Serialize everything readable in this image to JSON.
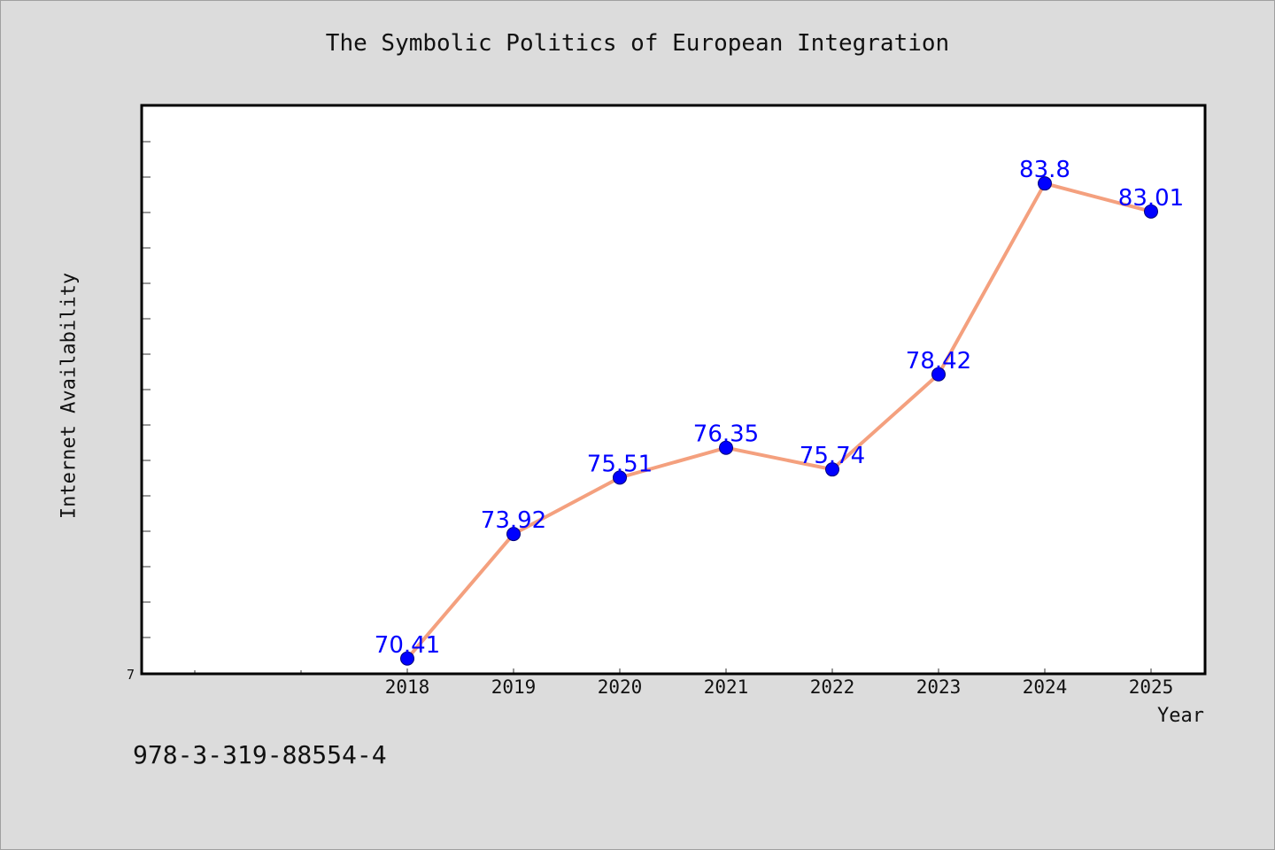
{
  "chart_data": {
    "type": "line",
    "title": "The Symbolic Politics of European Integration",
    "xlabel": "Year",
    "ylabel": "Internet Availability",
    "x": [
      "2018",
      "2019",
      "2020",
      "2021",
      "2022",
      "2023",
      "2024",
      "2025"
    ],
    "series": [
      {
        "values": [
          70.41,
          73.92,
          75.51,
          76.35,
          75.74,
          78.42,
          83.8,
          83.01
        ],
        "labels": [
          "70.41",
          "73.92",
          "75.51",
          "76.35",
          "75.74",
          "78.42",
          "83.8",
          "83.01"
        ]
      }
    ],
    "ytick_labels": [
      "7"
    ],
    "ylim": [
      69.98,
      86.0
    ],
    "grid": false,
    "colors": {
      "line": "#f4a07e",
      "marker": "#0000ff",
      "label": "#0000ff",
      "background": "#dcdcdc",
      "plot_bg": "#ffffff"
    }
  },
  "footer": {
    "isbn": "978-3-319-88554-4"
  }
}
